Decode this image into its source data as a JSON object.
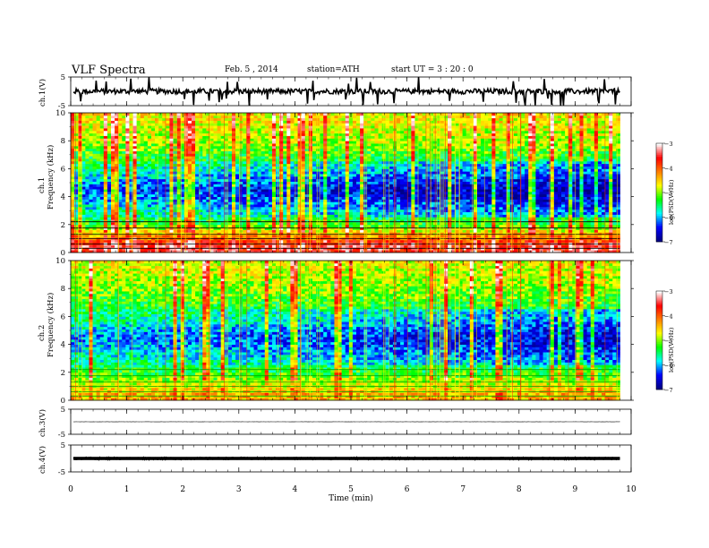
{
  "header": {
    "title": "VLF  Spectra",
    "date": "Feb. 5  , 2014",
    "station": "station=ATH",
    "start": "start  UT  =   3  : 20 : 0"
  },
  "chart_data": {
    "type": "multi-panel",
    "x_axis": {
      "label": "Time  (min)",
      "range": [
        0,
        10
      ],
      "ticks": [
        0,
        1,
        2,
        3,
        4,
        5,
        6,
        7,
        8,
        9,
        10
      ],
      "data_end": 9.8
    },
    "panels": [
      {
        "kind": "waveform",
        "ylabel": "ch.1(V)",
        "ylim": [
          -5,
          5
        ],
        "yticks": [
          5,
          -5
        ],
        "baseline": 0,
        "noise_amplitude": 0.9,
        "spikes_up_to": 5.0
      },
      {
        "kind": "spectrogram",
        "ylabel": "Frequency  (kHz)",
        "channel_label": "ch.1",
        "ylim": [
          0,
          10
        ],
        "yticks": [
          0,
          2,
          4,
          6,
          8,
          10
        ],
        "colorbar": {
          "label": "log(PSD(V²/Hz)",
          "range": [
            -7,
            -3
          ],
          "ticks": [
            -7,
            -6,
            -5,
            -4,
            -3
          ],
          "colors": [
            "#000080",
            "#0000ff",
            "#00ffff",
            "#00ff00",
            "#ffff00",
            "#ff8000",
            "#ff0000",
            "#ffffff"
          ]
        },
        "mean_log_psd_by_freq": [
          {
            "f_khz": 0.5,
            "log_psd": -3.5
          },
          {
            "f_khz": 2.0,
            "log_psd": -5.2
          },
          {
            "f_khz": 3.5,
            "log_psd": -5.9
          },
          {
            "f_khz": 4.5,
            "log_psd": -6.3
          },
          {
            "f_khz": 6.0,
            "log_psd": -5.6
          },
          {
            "f_khz": 8.0,
            "log_psd": -4.9
          },
          {
            "f_khz": 10.0,
            "log_psd": -4.6
          }
        ]
      },
      {
        "kind": "spectrogram",
        "ylabel": "Frequency  (kHz)",
        "channel_label": "ch.2",
        "ylim": [
          0,
          10
        ],
        "yticks": [
          0,
          2,
          4,
          6,
          8,
          10
        ],
        "colorbar": {
          "label": "log(PSD(V²/Hz)",
          "range": [
            -7,
            -3
          ],
          "ticks": [
            -7,
            -6,
            -5,
            -4,
            -3
          ],
          "colors": [
            "#000080",
            "#0000ff",
            "#00ffff",
            "#00ff00",
            "#ffff00",
            "#ff8000",
            "#ff0000",
            "#ffffff"
          ]
        },
        "mean_log_psd_by_freq": [
          {
            "f_khz": 0.5,
            "log_psd": -4.4
          },
          {
            "f_khz": 2.0,
            "log_psd": -5.3
          },
          {
            "f_khz": 3.5,
            "log_psd": -5.8
          },
          {
            "f_khz": 4.5,
            "log_psd": -6.1
          },
          {
            "f_khz": 6.0,
            "log_psd": -5.5
          },
          {
            "f_khz": 8.0,
            "log_psd": -5.0
          },
          {
            "f_khz": 10.0,
            "log_psd": -4.7
          }
        ]
      },
      {
        "kind": "waveform",
        "ylabel": "ch.3(V)",
        "ylim": [
          -5,
          5
        ],
        "yticks": [
          5,
          -5
        ],
        "baseline": 0,
        "noise_amplitude": 0.05
      },
      {
        "kind": "waveform",
        "ylabel": "ch.4(V)",
        "ylim": [
          -5,
          5
        ],
        "yticks": [
          5,
          -5
        ],
        "baseline": 0,
        "noise_amplitude": 0.4
      }
    ]
  }
}
